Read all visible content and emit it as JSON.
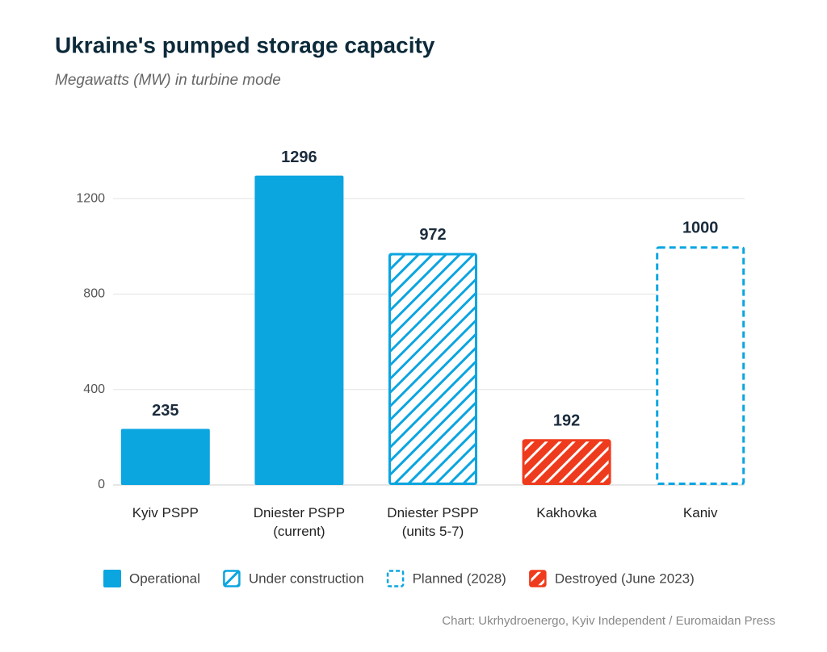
{
  "chart_data": {
    "type": "bar",
    "title": "Ukraine's pumped storage capacity",
    "subtitle": "Megawatts (MW) in turbine mode",
    "source": "Chart: Ukrhydroenergo, Kyiv Independent / Euromaidan Press",
    "categories": [
      "Kyiv PSPP",
      "Dniester PSPP (current)",
      "Dniester PSPP (units 5-7)",
      "Kakhovka",
      "Kaniv"
    ],
    "series": [
      {
        "name": "Operational",
        "color": "#0ba5e0",
        "style": "solid",
        "values": [
          235,
          1296,
          null,
          null,
          null
        ]
      },
      {
        "name": "Under construction",
        "color": "#0ba5e0",
        "style": "hatched",
        "values": [
          null,
          null,
          972,
          null,
          null
        ]
      },
      {
        "name": "Planned (2028)",
        "color": "#0ba5e0",
        "style": "dashed",
        "values": [
          null,
          null,
          null,
          null,
          1000
        ]
      },
      {
        "name": "Destroyed (June 2023)",
        "color": "#ef3b1d",
        "style": "hatched",
        "values": [
          null,
          null,
          null,
          192,
          null
        ]
      }
    ],
    "ylim": [
      0,
      1300
    ],
    "yticks": [
      0,
      400,
      800,
      1200
    ],
    "grid": true
  }
}
